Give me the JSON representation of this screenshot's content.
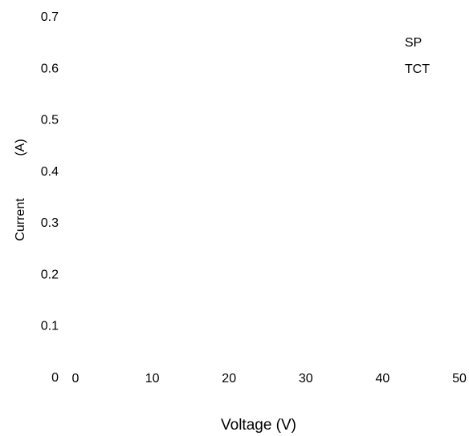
{
  "chart_data": {
    "type": "line",
    "title": "",
    "xlabel": "Voltage (V)",
    "ylabel_parts": [
      "Current",
      "(A)"
    ],
    "x_ticks": [
      "0",
      "10",
      "20",
      "30",
      "40",
      "50"
    ],
    "y_ticks": [
      "0",
      "0.1",
      "0.2",
      "0.3",
      "0.4",
      "0.5",
      "0.6",
      "0.7"
    ],
    "xlim": [
      0,
      50
    ],
    "ylim": [
      0,
      0.7
    ],
    "grid": false,
    "legend_position": "top-right",
    "series": [
      {
        "name": "SP",
        "x": [],
        "y": []
      },
      {
        "name": "TCT",
        "x": [],
        "y": []
      }
    ]
  }
}
